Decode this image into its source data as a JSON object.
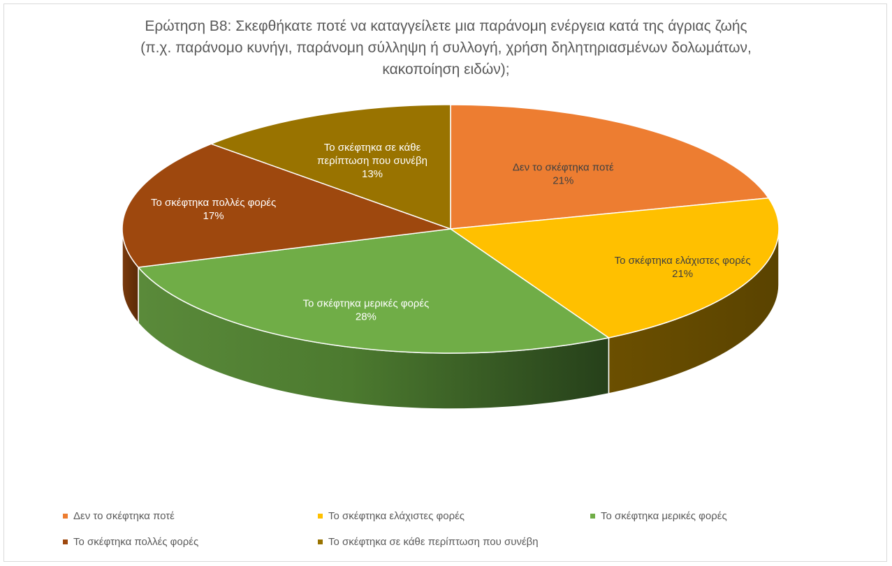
{
  "chart_data": {
    "type": "pie",
    "title_lines": [
      "Ερώτηση Β8: Σκεφθήκατε ποτέ να καταγγείλετε μια παράνομη ενέργεια κατά της άγριας ζωής",
      "(π.χ. παράνομο κυνήγι, παράνομη σύλληψη ή συλλογή, χρήση δηλητηριασμένων δολωμάτων,",
      "κακοποίηση ειδών);"
    ],
    "slices": [
      {
        "label": "Δεν το σκέφτηκα ποτέ",
        "value": 21,
        "percent_label": "21%",
        "color": "#ED7D31",
        "label_lines": [
          "Δεν το σκέφτηκα ποτέ"
        ]
      },
      {
        "label": "Το σκέφτηκα ελάχιστες φορές",
        "value": 21,
        "percent_label": "21%",
        "color": "#FFC000",
        "label_lines": [
          "Το σκέφτηκα ελάχιστες φορές"
        ]
      },
      {
        "label": "Το σκέφτηκα μερικές φορές",
        "value": 28,
        "percent_label": "28%",
        "color": "#70AD47",
        "label_lines": [
          "Το σκέφτηκα μερικές φορές"
        ]
      },
      {
        "label": "Το σκέφτηκα πολλές φορές",
        "value": 17,
        "percent_label": "17%",
        "color": "#9E480E",
        "label_lines": [
          "Το σκέφτηκα πολλές φορές"
        ]
      },
      {
        "label": "Το σκέφτηκα σε κάθε περίπτωση που συνέβη",
        "value": 13,
        "percent_label": "13%",
        "color": "#997300",
        "label_lines": [
          "Το σκέφτηκα σε κάθε",
          "περίπτωση που συνέβη"
        ]
      }
    ],
    "legend_position": "bottom"
  }
}
